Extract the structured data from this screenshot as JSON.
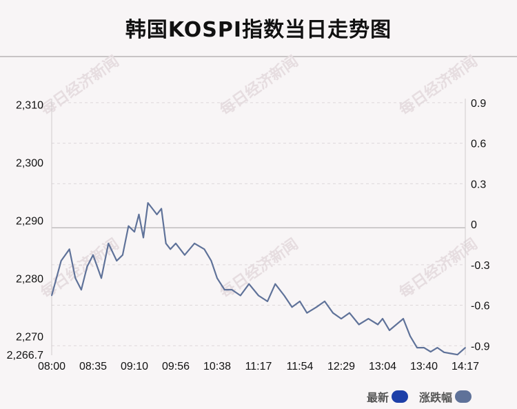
{
  "title": "韩国KOSPI指数当日走势图",
  "watermark": "每日经济新闻",
  "legend": {
    "latest_label": "最新",
    "latest_color": "#1d3fa8",
    "change_label": "涨跌幅",
    "change_color": "#5f7299"
  },
  "chart_data": {
    "type": "line",
    "title": "韩国KOSPI指数当日走势图",
    "xlabel": "",
    "ylabel": "",
    "x_ticks": [
      "08:00",
      "08:35",
      "09:10",
      "09:56",
      "10:38",
      "11:17",
      "11:54",
      "12:29",
      "13:04",
      "13:40",
      "14:17"
    ],
    "y_left_ticks": [
      "2,310",
      "2,300",
      "2,290",
      "2,280",
      "2,270",
      "2,266.7"
    ],
    "y_left_tick_values": [
      2310,
      2300,
      2290,
      2280,
      2270,
      2266.7
    ],
    "y_right_ticks": [
      "0.9",
      "0.6",
      "0.3",
      "0",
      "-0.3",
      "-0.6",
      "-0.9"
    ],
    "y_right_tick_values": [
      0.9,
      0.6,
      0.3,
      0,
      -0.3,
      -0.6,
      -0.9
    ],
    "ylim": [
      2266.7,
      2311
    ],
    "y2lim": [
      -0.97,
      0.93
    ],
    "reference_value": 2288.7,
    "grid": true,
    "legend_position": "bottom-right",
    "series": [
      {
        "name": "最新",
        "color": "#5f7299",
        "x": [
          "08:00",
          "08:08",
          "08:15",
          "08:20",
          "08:25",
          "08:30",
          "08:35",
          "08:42",
          "08:48",
          "08:55",
          "09:00",
          "09:05",
          "09:10",
          "09:15",
          "09:20",
          "09:25",
          "09:30",
          "09:35",
          "09:40",
          "09:45",
          "09:50",
          "09:56",
          "10:05",
          "10:15",
          "10:25",
          "10:32",
          "10:38",
          "10:45",
          "10:52",
          "11:00",
          "11:08",
          "11:17",
          "11:25",
          "11:32",
          "11:40",
          "11:47",
          "11:54",
          "12:00",
          "12:08",
          "12:15",
          "12:22",
          "12:29",
          "12:36",
          "12:44",
          "12:52",
          "13:00",
          "13:04",
          "13:10",
          "13:16",
          "13:22",
          "13:28",
          "13:34",
          "13:40",
          "13:46",
          "13:52",
          "13:58",
          "14:04",
          "14:10",
          "14:17"
        ],
        "values": [
          2277,
          2283,
          2285,
          2280,
          2278,
          2282,
          2284,
          2280,
          2286,
          2283,
          2284,
          2289,
          2288,
          2291,
          2287,
          2293,
          2292,
          2291,
          2292,
          2286,
          2285,
          2286,
          2284,
          2286,
          2285,
          2283,
          2280,
          2278,
          2278,
          2277,
          2279,
          2277,
          2276,
          2279,
          2277,
          2275,
          2276,
          2274,
          2275,
          2276,
          2274,
          2273,
          2274,
          2272,
          2273,
          2272,
          2273,
          2271,
          2272,
          2273,
          2270,
          2268,
          2268,
          2267.3,
          2268,
          2267.2,
          2267,
          2266.8,
          2268
        ]
      }
    ]
  }
}
